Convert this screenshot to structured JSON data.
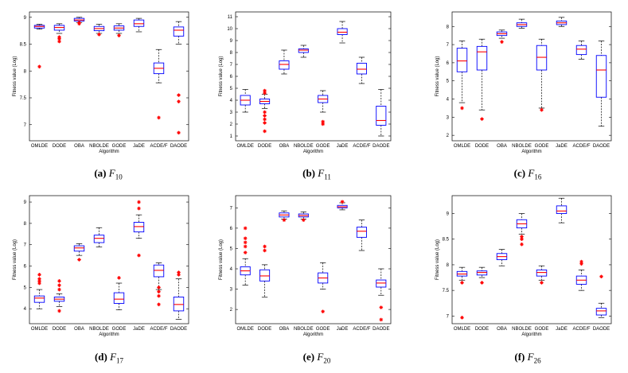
{
  "colors": {
    "box": "#0000ff",
    "median": "#ff0000",
    "outlier": "#ff0000",
    "whisker": "#000000"
  },
  "chart_data": [
    {
      "type": "boxplot",
      "caption_label": "(a)",
      "caption_func": "F",
      "caption_sub": "10",
      "xlabel": "Algorithm",
      "ylabel": "Fitness value (Log)",
      "categories": [
        "OMLDE",
        "DODE",
        "OBA",
        "NBOLDE",
        "GODE",
        "JaDE",
        "ACDE/F",
        "DAODE"
      ],
      "ylim": [
        6.7,
        9.1
      ],
      "yticks": [
        7,
        7.5,
        8,
        8.5,
        9
      ],
      "ytick_labels": [
        "7",
        "7.5",
        "8",
        "8.5",
        "9"
      ],
      "boxes": [
        {
          "min": 8.78,
          "q1": 8.8,
          "med": 8.83,
          "q3": 8.85,
          "max": 8.87,
          "outliers": [
            8.08
          ]
        },
        {
          "min": 8.7,
          "q1": 8.76,
          "med": 8.81,
          "q3": 8.85,
          "max": 8.88,
          "outliers": [
            8.55,
            8.6,
            8.63
          ]
        },
        {
          "min": 8.9,
          "q1": 8.93,
          "med": 8.95,
          "q3": 8.98,
          "max": 9.0,
          "outliers": [
            8.88,
            8.9
          ]
        },
        {
          "min": 8.7,
          "q1": 8.75,
          "med": 8.79,
          "q3": 8.83,
          "max": 8.87,
          "outliers": [
            8.68
          ]
        },
        {
          "min": 8.7,
          "q1": 8.76,
          "med": 8.8,
          "q3": 8.84,
          "max": 8.88,
          "outliers": [
            8.66
          ]
        },
        {
          "min": 8.73,
          "q1": 8.83,
          "med": 8.88,
          "q3": 8.95,
          "max": 8.98,
          "outliers": []
        },
        {
          "min": 7.78,
          "q1": 7.95,
          "med": 8.05,
          "q3": 8.15,
          "max": 8.4,
          "outliers": [
            7.13
          ]
        },
        {
          "min": 8.5,
          "q1": 8.65,
          "med": 8.76,
          "q3": 8.82,
          "max": 8.92,
          "outliers": [
            7.55,
            7.43,
            6.85
          ]
        }
      ]
    },
    {
      "type": "boxplot",
      "caption_label": "(b)",
      "caption_func": "F",
      "caption_sub": "11",
      "xlabel": "Algorithm",
      "ylabel": "Fitness value (Log)",
      "categories": [
        "OMLDE",
        "DODE",
        "OBA",
        "NBOLDE",
        "GODE",
        "JaDE",
        "ACDE/F",
        "DAODE"
      ],
      "ylim": [
        0.6,
        11.4
      ],
      "yticks": [
        1,
        2,
        3,
        4,
        5,
        6,
        7,
        8,
        9,
        10,
        11
      ],
      "ytick_labels": [
        "1",
        "2",
        "3",
        "4",
        "5",
        "6",
        "7",
        "8",
        "9",
        "10",
        "11"
      ],
      "boxes": [
        {
          "min": 3.0,
          "q1": 3.6,
          "med": 4.0,
          "q3": 4.4,
          "max": 4.9,
          "outliers": []
        },
        {
          "min": 3.3,
          "q1": 3.7,
          "med": 3.9,
          "q3": 4.1,
          "max": 4.5,
          "outliers": [
            2.1,
            2.4,
            2.7,
            3.0,
            1.4,
            4.6,
            4.8
          ]
        },
        {
          "min": 6.2,
          "q1": 6.6,
          "med": 7.0,
          "q3": 7.3,
          "max": 8.2,
          "outliers": []
        },
        {
          "min": 7.6,
          "q1": 8.0,
          "med": 8.2,
          "q3": 8.3,
          "max": 8.6,
          "outliers": []
        },
        {
          "min": 3.0,
          "q1": 3.8,
          "med": 4.1,
          "q3": 4.4,
          "max": 4.8,
          "outliers": [
            2.0,
            2.2
          ]
        },
        {
          "min": 8.8,
          "q1": 9.5,
          "med": 9.7,
          "q3": 10.0,
          "max": 10.6,
          "outliers": []
        },
        {
          "min": 5.4,
          "q1": 6.2,
          "med": 6.6,
          "q3": 7.1,
          "max": 7.6,
          "outliers": []
        },
        {
          "min": 1.0,
          "q1": 1.9,
          "med": 2.3,
          "q3": 3.5,
          "max": 4.9,
          "outliers": []
        }
      ]
    },
    {
      "type": "boxplot",
      "caption_label": "(c)",
      "caption_func": "F",
      "caption_sub": "16",
      "xlabel": "Algorithm",
      "ylabel": "Fitness value (Log)",
      "categories": [
        "OMLDE",
        "DODE",
        "OBA",
        "NBOLDE",
        "GODE",
        "JaDE",
        "ACDE/F",
        "DAODE"
      ],
      "ylim": [
        1.7,
        8.8
      ],
      "yticks": [
        2,
        3,
        4,
        5,
        6,
        7,
        8
      ],
      "ytick_labels": [
        "2",
        "3",
        "4",
        "5",
        "6",
        "7",
        "8"
      ],
      "boxes": [
        {
          "min": 3.8,
          "q1": 5.5,
          "med": 6.1,
          "q3": 6.8,
          "max": 7.2,
          "outliers": [
            3.5
          ]
        },
        {
          "min": 3.4,
          "q1": 5.6,
          "med": 6.6,
          "q3": 6.9,
          "max": 7.3,
          "outliers": [
            2.9
          ]
        },
        {
          "min": 7.35,
          "q1": 7.5,
          "med": 7.6,
          "q3": 7.7,
          "max": 7.8,
          "outliers": [
            7.15
          ]
        },
        {
          "min": 7.9,
          "q1": 8.0,
          "med": 8.1,
          "q3": 8.2,
          "max": 8.4,
          "outliers": []
        },
        {
          "min": 3.5,
          "q1": 5.6,
          "med": 6.3,
          "q3": 6.95,
          "max": 7.3,
          "outliers": [
            3.4
          ]
        },
        {
          "min": 8.0,
          "q1": 8.1,
          "med": 8.2,
          "q3": 8.3,
          "max": 8.5,
          "outliers": []
        },
        {
          "min": 6.2,
          "q1": 6.45,
          "med": 6.75,
          "q3": 6.95,
          "max": 7.2,
          "outliers": []
        },
        {
          "min": 2.5,
          "q1": 4.1,
          "med": 5.6,
          "q3": 6.4,
          "max": 7.2,
          "outliers": []
        }
      ]
    },
    {
      "type": "boxplot",
      "caption_label": "(d)",
      "caption_func": "F",
      "caption_sub": "17",
      "xlabel": "Algorithm",
      "ylabel": "Fitness value (Log)",
      "categories": [
        "OMLDE",
        "DODE",
        "OBA",
        "NBOLDE",
        "GODE",
        "JaDE",
        "ACDE/F",
        "DAODE"
      ],
      "ylim": [
        3.3,
        9.3
      ],
      "yticks": [
        4,
        5,
        6,
        7,
        8,
        9
      ],
      "ytick_labels": [
        "4",
        "5",
        "6",
        "7",
        "8",
        "9"
      ],
      "boxes": [
        {
          "min": 4.0,
          "q1": 4.3,
          "med": 4.5,
          "q3": 4.6,
          "max": 4.9,
          "outliers": [
            5.2,
            5.3,
            5.4,
            5.6
          ]
        },
        {
          "min": 4.1,
          "q1": 4.35,
          "med": 4.45,
          "q3": 4.55,
          "max": 4.7,
          "outliers": [
            3.9,
            4.9,
            5.1,
            5.3
          ]
        },
        {
          "min": 6.5,
          "q1": 6.7,
          "med": 6.85,
          "q3": 6.95,
          "max": 7.05,
          "outliers": [
            6.3
          ]
        },
        {
          "min": 6.9,
          "q1": 7.1,
          "med": 7.3,
          "q3": 7.45,
          "max": 7.8,
          "outliers": []
        },
        {
          "min": 3.95,
          "q1": 4.25,
          "med": 4.45,
          "q3": 4.75,
          "max": 5.2,
          "outliers": [
            5.45
          ]
        },
        {
          "min": 7.3,
          "q1": 7.6,
          "med": 7.85,
          "q3": 8.05,
          "max": 8.4,
          "outliers": [
            6.5,
            8.7,
            9.0
          ]
        },
        {
          "min": 4.9,
          "q1": 5.5,
          "med": 5.8,
          "q3": 6.05,
          "max": 6.15,
          "outliers": [
            4.2,
            4.6,
            4.8,
            5.0
          ]
        },
        {
          "min": 3.5,
          "q1": 3.9,
          "med": 4.2,
          "q3": 4.55,
          "max": 5.4,
          "outliers": [
            5.6,
            5.7
          ]
        }
      ]
    },
    {
      "type": "boxplot",
      "caption_label": "(e)",
      "caption_func": "F",
      "caption_sub": "20",
      "xlabel": "Algorithm",
      "ylabel": "Fitness value (Log)",
      "categories": [
        "OMLDE",
        "DODE",
        "OBA",
        "NBOLDE",
        "GODE",
        "JaDE",
        "ACDE/F",
        "DAODE"
      ],
      "ylim": [
        1.3,
        7.6
      ],
      "yticks": [
        2,
        3,
        4,
        5,
        6,
        7
      ],
      "ytick_labels": [
        "2",
        "3",
        "4",
        "5",
        "6",
        "7"
      ],
      "boxes": [
        {
          "min": 3.2,
          "q1": 3.7,
          "med": 3.9,
          "q3": 4.1,
          "max": 4.5,
          "outliers": [
            4.8,
            5.1,
            5.3,
            5.5,
            6.0
          ]
        },
        {
          "min": 2.6,
          "q1": 3.4,
          "med": 3.65,
          "q3": 3.95,
          "max": 4.2,
          "outliers": [
            4.9,
            5.1
          ]
        },
        {
          "min": 6.45,
          "q1": 6.55,
          "med": 6.65,
          "q3": 6.75,
          "max": 6.85,
          "outliers": [
            6.4
          ]
        },
        {
          "min": 6.45,
          "q1": 6.55,
          "med": 6.62,
          "q3": 6.7,
          "max": 6.8,
          "outliers": [
            6.4
          ]
        },
        {
          "min": 3.0,
          "q1": 3.3,
          "med": 3.55,
          "q3": 3.8,
          "max": 4.3,
          "outliers": [
            1.9
          ]
        },
        {
          "min": 6.9,
          "q1": 7.0,
          "med": 7.05,
          "q3": 7.12,
          "max": 7.25,
          "outliers": [
            7.3
          ]
        },
        {
          "min": 4.9,
          "q1": 5.55,
          "med": 5.85,
          "q3": 6.05,
          "max": 6.4,
          "outliers": []
        },
        {
          "min": 2.7,
          "q1": 3.1,
          "med": 3.3,
          "q3": 3.45,
          "max": 4.0,
          "outliers": [
            2.1,
            1.5
          ]
        }
      ]
    },
    {
      "type": "boxplot",
      "caption_label": "(f)",
      "caption_func": "F",
      "caption_sub": "26",
      "xlabel": "Algorithm",
      "ylabel": "Fitness value (Log)",
      "categories": [
        "OMLDE",
        "DODE",
        "OBA",
        "NBOLDE",
        "GODE",
        "JaDE",
        "ACDE/F",
        "DAODE"
      ],
      "ylim": [
        6.85,
        9.35
      ],
      "yticks": [
        7,
        7.5,
        8,
        8.5,
        9
      ],
      "ytick_labels": [
        "7",
        "7.5",
        "8",
        "8.5",
        "9"
      ],
      "boxes": [
        {
          "min": 7.7,
          "q1": 7.78,
          "med": 7.82,
          "q3": 7.87,
          "max": 7.95,
          "outliers": [
            7.65,
            6.97
          ]
        },
        {
          "min": 7.75,
          "q1": 7.8,
          "med": 7.85,
          "q3": 7.88,
          "max": 7.95,
          "outliers": [
            7.65
          ]
        },
        {
          "min": 7.98,
          "q1": 8.1,
          "med": 8.16,
          "q3": 8.22,
          "max": 8.3,
          "outliers": []
        },
        {
          "min": 8.6,
          "q1": 8.72,
          "med": 8.8,
          "q3": 8.88,
          "max": 9.0,
          "outliers": [
            8.4,
            8.5,
            8.55
          ]
        },
        {
          "min": 7.7,
          "q1": 7.78,
          "med": 7.85,
          "q3": 7.9,
          "max": 7.98,
          "outliers": [
            7.65
          ]
        },
        {
          "min": 8.82,
          "q1": 9.0,
          "med": 9.05,
          "q3": 9.15,
          "max": 9.3,
          "outliers": []
        },
        {
          "min": 7.5,
          "q1": 7.62,
          "med": 7.7,
          "q3": 7.78,
          "max": 7.9,
          "outliers": [
            8.02,
            8.06
          ]
        },
        {
          "min": 6.97,
          "q1": 7.02,
          "med": 7.1,
          "q3": 7.15,
          "max": 7.25,
          "outliers": [
            7.77
          ]
        }
      ]
    }
  ]
}
